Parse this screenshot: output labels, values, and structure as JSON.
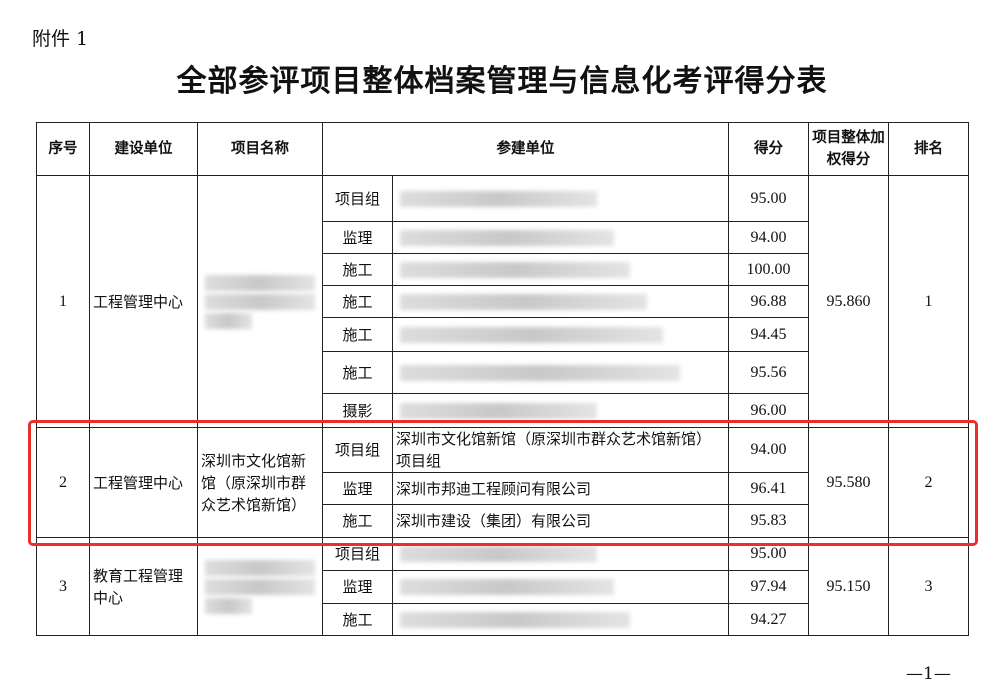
{
  "attachment": "附件 1",
  "title": "全部参评项目整体档案管理与信息化考评得分表",
  "headers": [
    "序号",
    "建设单位",
    "项目名称",
    "参建单位",
    "得分",
    "项目整体加权得分",
    "排名"
  ],
  "groups": [
    {
      "no": "1",
      "unit": "工程管理中心",
      "project": "",
      "weighted": "95.860",
      "rank": "1",
      "rows": [
        {
          "role": "项目组",
          "company": "",
          "score": "95.00"
        },
        {
          "role": "监理",
          "company": "",
          "score": "94.00"
        },
        {
          "role": "施工",
          "company": "",
          "score": "100.00"
        },
        {
          "role": "施工",
          "company": "",
          "score": "96.88"
        },
        {
          "role": "施工",
          "company": "",
          "score": "94.45"
        },
        {
          "role": "施工",
          "company": "",
          "score": "95.56"
        },
        {
          "role": "摄影",
          "company": "",
          "score": "96.00"
        }
      ]
    },
    {
      "no": "2",
      "unit": "工程管理中心",
      "project": "深圳市文化馆新馆（原深圳市群众艺术馆新馆）",
      "weighted": "95.580",
      "rank": "2",
      "rows": [
        {
          "role": "项目组",
          "company": "深圳市文化馆新馆（原深圳市群众艺术馆新馆）项目组",
          "score": "94.00"
        },
        {
          "role": "监理",
          "company": "深圳市邦迪工程顾问有限公司",
          "score": "96.41"
        },
        {
          "role": "施工",
          "company": "深圳市建设（集团）有限公司",
          "score": "95.83"
        }
      ]
    },
    {
      "no": "3",
      "unit": "教育工程管理中心",
      "project": "",
      "weighted": "95.150",
      "rank": "3",
      "rows": [
        {
          "role": "项目组",
          "company": "",
          "score": "95.00"
        },
        {
          "role": "监理",
          "company": "",
          "score": "97.94"
        },
        {
          "role": "施工",
          "company": "",
          "score": "94.27"
        }
      ]
    }
  ],
  "highlight_color": "#e8302a",
  "page_number": "—1—"
}
